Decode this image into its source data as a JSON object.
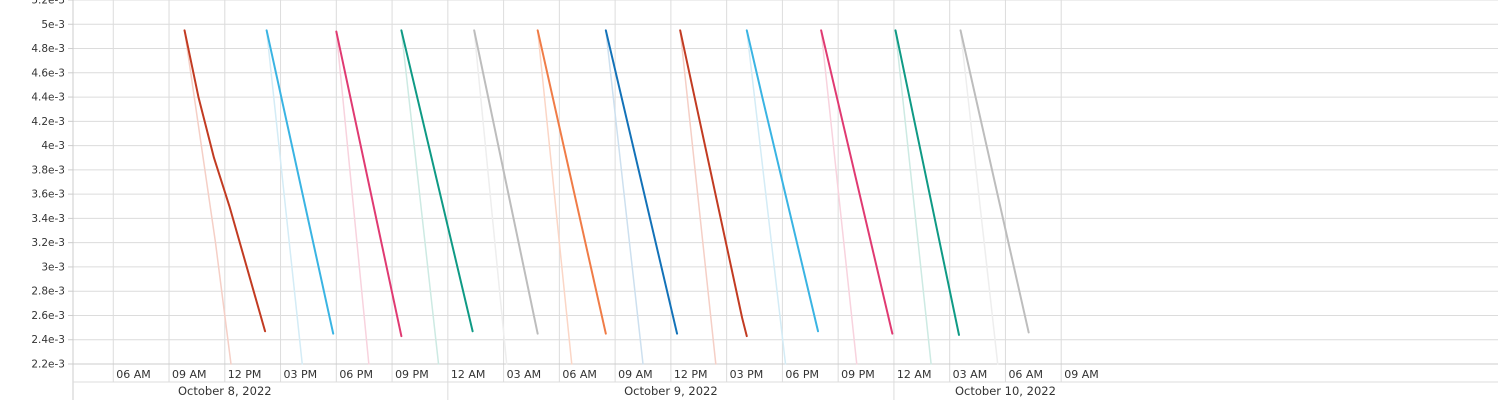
{
  "chart_data": {
    "type": "line",
    "title": "",
    "xlabel": "",
    "ylabel": "",
    "grid": true,
    "ylim": [
      0.0022,
      0.0052
    ],
    "xlim": [
      "2022-10-08T03:50",
      "2022-10-11T08:30"
    ],
    "y_ticks": [
      "2.2e-3",
      "2.4e-3",
      "2.6e-3",
      "2.8e-3",
      "3e-3",
      "3.2e-3",
      "3.4e-3",
      "3.6e-3",
      "3.8e-3",
      "4e-3",
      "4.2e-3",
      "4.4e-3",
      "4.6e-3",
      "4.8e-3",
      "5e-3",
      "5.2e-3"
    ],
    "y_tick_values": [
      0.0022,
      0.0024,
      0.0026,
      0.0028,
      0.003,
      0.0032,
      0.0034,
      0.0036,
      0.0038,
      0.004,
      0.0042,
      0.0044,
      0.0046,
      0.0048,
      0.005,
      0.0052
    ],
    "x_ticks": [
      {
        "label": "06 AM",
        "t": "2022-10-08T06:00"
      },
      {
        "label": "09 AM",
        "t": "2022-10-08T09:00"
      },
      {
        "label": "12 PM",
        "t": "2022-10-08T12:00"
      },
      {
        "label": "03 PM",
        "t": "2022-10-08T15:00"
      },
      {
        "label": "06 PM",
        "t": "2022-10-08T18:00"
      },
      {
        "label": "09 PM",
        "t": "2022-10-08T21:00"
      },
      {
        "label": "12 AM",
        "t": "2022-10-09T00:00"
      },
      {
        "label": "03 AM",
        "t": "2022-10-09T03:00"
      },
      {
        "label": "06 AM",
        "t": "2022-10-09T06:00"
      },
      {
        "label": "09 AM",
        "t": "2022-10-09T09:00"
      },
      {
        "label": "12 PM",
        "t": "2022-10-09T12:00"
      },
      {
        "label": "03 PM",
        "t": "2022-10-09T15:00"
      },
      {
        "label": "06 PM",
        "t": "2022-10-09T18:00"
      },
      {
        "label": "09 PM",
        "t": "2022-10-09T21:00"
      },
      {
        "label": "12 AM",
        "t": "2022-10-10T00:00"
      },
      {
        "label": "03 AM",
        "t": "2022-10-10T03:00"
      },
      {
        "label": "06 AM",
        "t": "2022-10-10T06:00"
      },
      {
        "label": "09 AM",
        "t": "2022-10-10T09:00"
      }
    ],
    "day_labels": [
      {
        "label": "October 8, 2022",
        "t": "2022-10-08T12:00"
      },
      {
        "label": "October 9, 2022",
        "t": "2022-10-09T12:00"
      },
      {
        "label": "October 10, 2022",
        "t": "2022-10-10T06:00"
      }
    ],
    "series": [
      {
        "color": "#c23b22",
        "points": [
          [
            "2022-10-08T09:50",
            0.00495
          ],
          [
            "2022-10-08T10:35",
            0.0044
          ],
          [
            "2022-10-08T11:25",
            0.0039
          ],
          [
            "2022-10-08T12:15",
            0.0035
          ],
          [
            "2022-10-08T14:10",
            0.00247
          ]
        ]
      },
      {
        "color": "#f5cfc6",
        "points": [
          [
            "2022-10-08T09:50",
            0.00495
          ],
          [
            "2022-10-08T11:30",
            0.0032
          ],
          [
            "2022-10-08T12:20",
            0.0022
          ]
        ]
      },
      {
        "color": "#3ab4e3",
        "points": [
          [
            "2022-10-08T14:15",
            0.00495
          ],
          [
            "2022-10-08T17:50",
            0.00245
          ]
        ]
      },
      {
        "color": "#d4ecf6",
        "points": [
          [
            "2022-10-08T14:15",
            0.00495
          ],
          [
            "2022-10-08T16:10",
            0.0022
          ]
        ]
      },
      {
        "color": "#e03a72",
        "points": [
          [
            "2022-10-08T18:00",
            0.00494
          ],
          [
            "2022-10-08T21:30",
            0.00243
          ]
        ]
      },
      {
        "color": "#f8d3de",
        "points": [
          [
            "2022-10-08T18:00",
            0.00494
          ],
          [
            "2022-10-08T19:45",
            0.0022
          ]
        ]
      },
      {
        "color": "#0f9a85",
        "points": [
          [
            "2022-10-08T21:30",
            0.00495
          ],
          [
            "2022-10-09T01:20",
            0.00247
          ]
        ]
      },
      {
        "color": "#cdeae3",
        "points": [
          [
            "2022-10-08T21:30",
            0.00495
          ],
          [
            "2022-10-08T23:30",
            0.0022
          ]
        ]
      },
      {
        "color": "#bdbdbd",
        "points": [
          [
            "2022-10-09T01:25",
            0.00495
          ],
          [
            "2022-10-09T04:50",
            0.00245
          ]
        ]
      },
      {
        "color": "#eeeeee",
        "points": [
          [
            "2022-10-09T01:25",
            0.00495
          ],
          [
            "2022-10-09T03:10",
            0.0022
          ]
        ]
      },
      {
        "color": "#f07c47",
        "points": [
          [
            "2022-10-09T04:50",
            0.00495
          ],
          [
            "2022-10-09T08:30",
            0.00245
          ]
        ]
      },
      {
        "color": "#fbd6c6",
        "points": [
          [
            "2022-10-09T04:50",
            0.00495
          ],
          [
            "2022-10-09T06:40",
            0.0022
          ]
        ]
      },
      {
        "color": "#1372b8",
        "points": [
          [
            "2022-10-09T08:30",
            0.00495
          ],
          [
            "2022-10-09T12:20",
            0.00245
          ]
        ]
      },
      {
        "color": "#cde0ef",
        "points": [
          [
            "2022-10-09T08:30",
            0.00495
          ],
          [
            "2022-10-09T10:30",
            0.0022
          ]
        ]
      },
      {
        "color": "#c23b22",
        "points": [
          [
            "2022-10-09T12:30",
            0.00495
          ],
          [
            "2022-10-09T15:50",
            0.00258
          ],
          [
            "2022-10-09T16:05",
            0.00243
          ]
        ]
      },
      {
        "color": "#f5cfc6",
        "points": [
          [
            "2022-10-09T12:30",
            0.00495
          ],
          [
            "2022-10-09T14:25",
            0.0022
          ]
        ]
      },
      {
        "color": "#3ab4e3",
        "points": [
          [
            "2022-10-09T16:05",
            0.00495
          ],
          [
            "2022-10-09T16:55",
            0.0044
          ],
          [
            "2022-10-09T19:55",
            0.00247
          ]
        ]
      },
      {
        "color": "#d4ecf6",
        "points": [
          [
            "2022-10-09T16:05",
            0.00495
          ],
          [
            "2022-10-09T18:10",
            0.0022
          ]
        ]
      },
      {
        "color": "#e03a72",
        "points": [
          [
            "2022-10-09T20:05",
            0.00495
          ],
          [
            "2022-10-09T23:55",
            0.00245
          ]
        ]
      },
      {
        "color": "#f8d3de",
        "points": [
          [
            "2022-10-09T20:05",
            0.00495
          ],
          [
            "2022-10-09T22:00",
            0.0022
          ]
        ]
      },
      {
        "color": "#0f9a85",
        "points": [
          [
            "2022-10-10T00:05",
            0.00495
          ],
          [
            "2022-10-10T03:30",
            0.00244
          ]
        ]
      },
      {
        "color": "#cdeae3",
        "points": [
          [
            "2022-10-10T00:05",
            0.00495
          ],
          [
            "2022-10-10T02:00",
            0.0022
          ]
        ]
      },
      {
        "color": "#bdbdbd",
        "points": [
          [
            "2022-10-10T03:35",
            0.00495
          ],
          [
            "2022-10-10T07:15",
            0.00246
          ]
        ]
      },
      {
        "color": "#eeeeee",
        "points": [
          [
            "2022-10-10T03:35",
            0.00495
          ],
          [
            "2022-10-10T05:35",
            0.0022
          ]
        ]
      }
    ]
  }
}
